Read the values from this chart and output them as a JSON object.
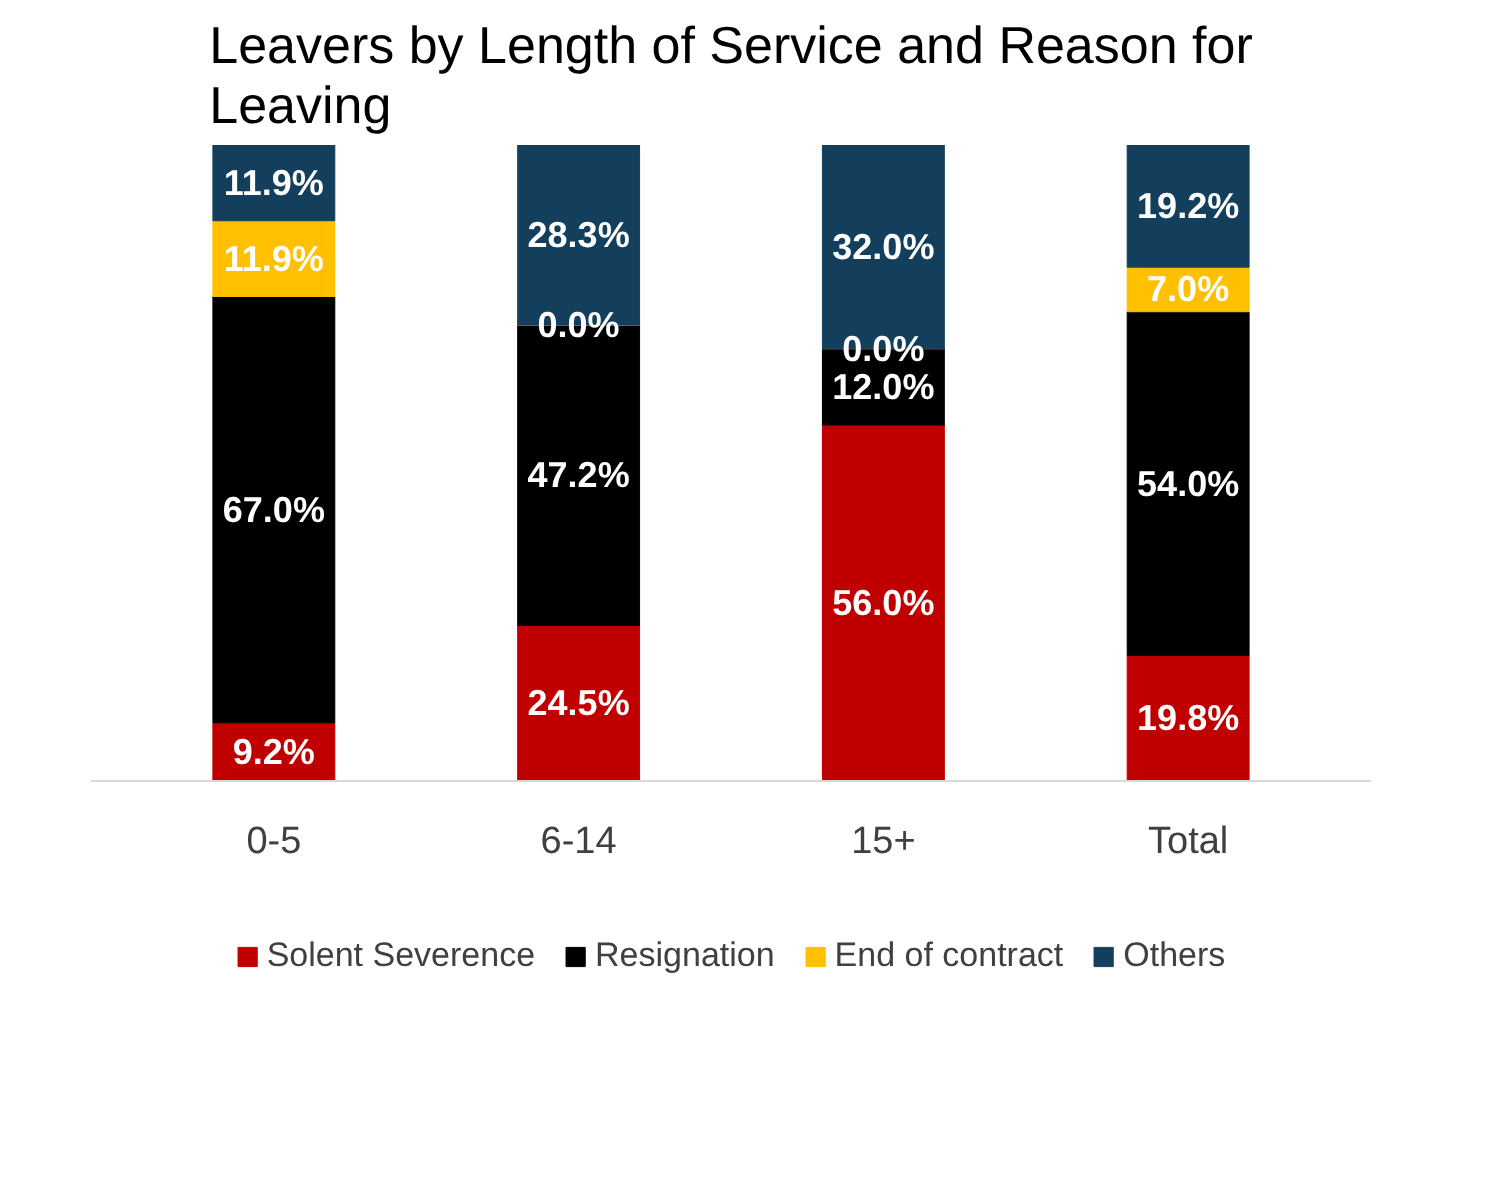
{
  "chart_data": {
    "type": "bar",
    "title": "Leavers by Length of Service and Reason for Leaving",
    "stacked": true,
    "legend": "bottom",
    "categories": [
      "0-5",
      "6-14",
      "15+",
      "Total"
    ],
    "series": [
      {
        "name": "Solent Severence",
        "color": "#c00000",
        "values": [
          9.2,
          24.5,
          56.0,
          19.8
        ],
        "value_labels": [
          "9.2%",
          "24.5%",
          "56.0%",
          "19.8%"
        ]
      },
      {
        "name": "Resignation",
        "color": "#000000",
        "values": [
          67.0,
          47.2,
          12.0,
          54.0
        ],
        "value_labels": [
          "67.0%",
          "47.2%",
          "12.0%",
          "54.0%"
        ]
      },
      {
        "name": "End of contract",
        "color": "#ffc000",
        "values": [
          11.9,
          0.0,
          0.0,
          7.0
        ],
        "value_labels": [
          "11.9%",
          "0.0%",
          "0.0%",
          "7.0%"
        ]
      },
      {
        "name": "Others",
        "color": "#133f5c",
        "values": [
          11.9,
          28.3,
          32.0,
          19.2
        ],
        "value_labels": [
          "11.9%",
          "28.3%",
          "32.0%",
          "19.2%"
        ]
      }
    ]
  }
}
